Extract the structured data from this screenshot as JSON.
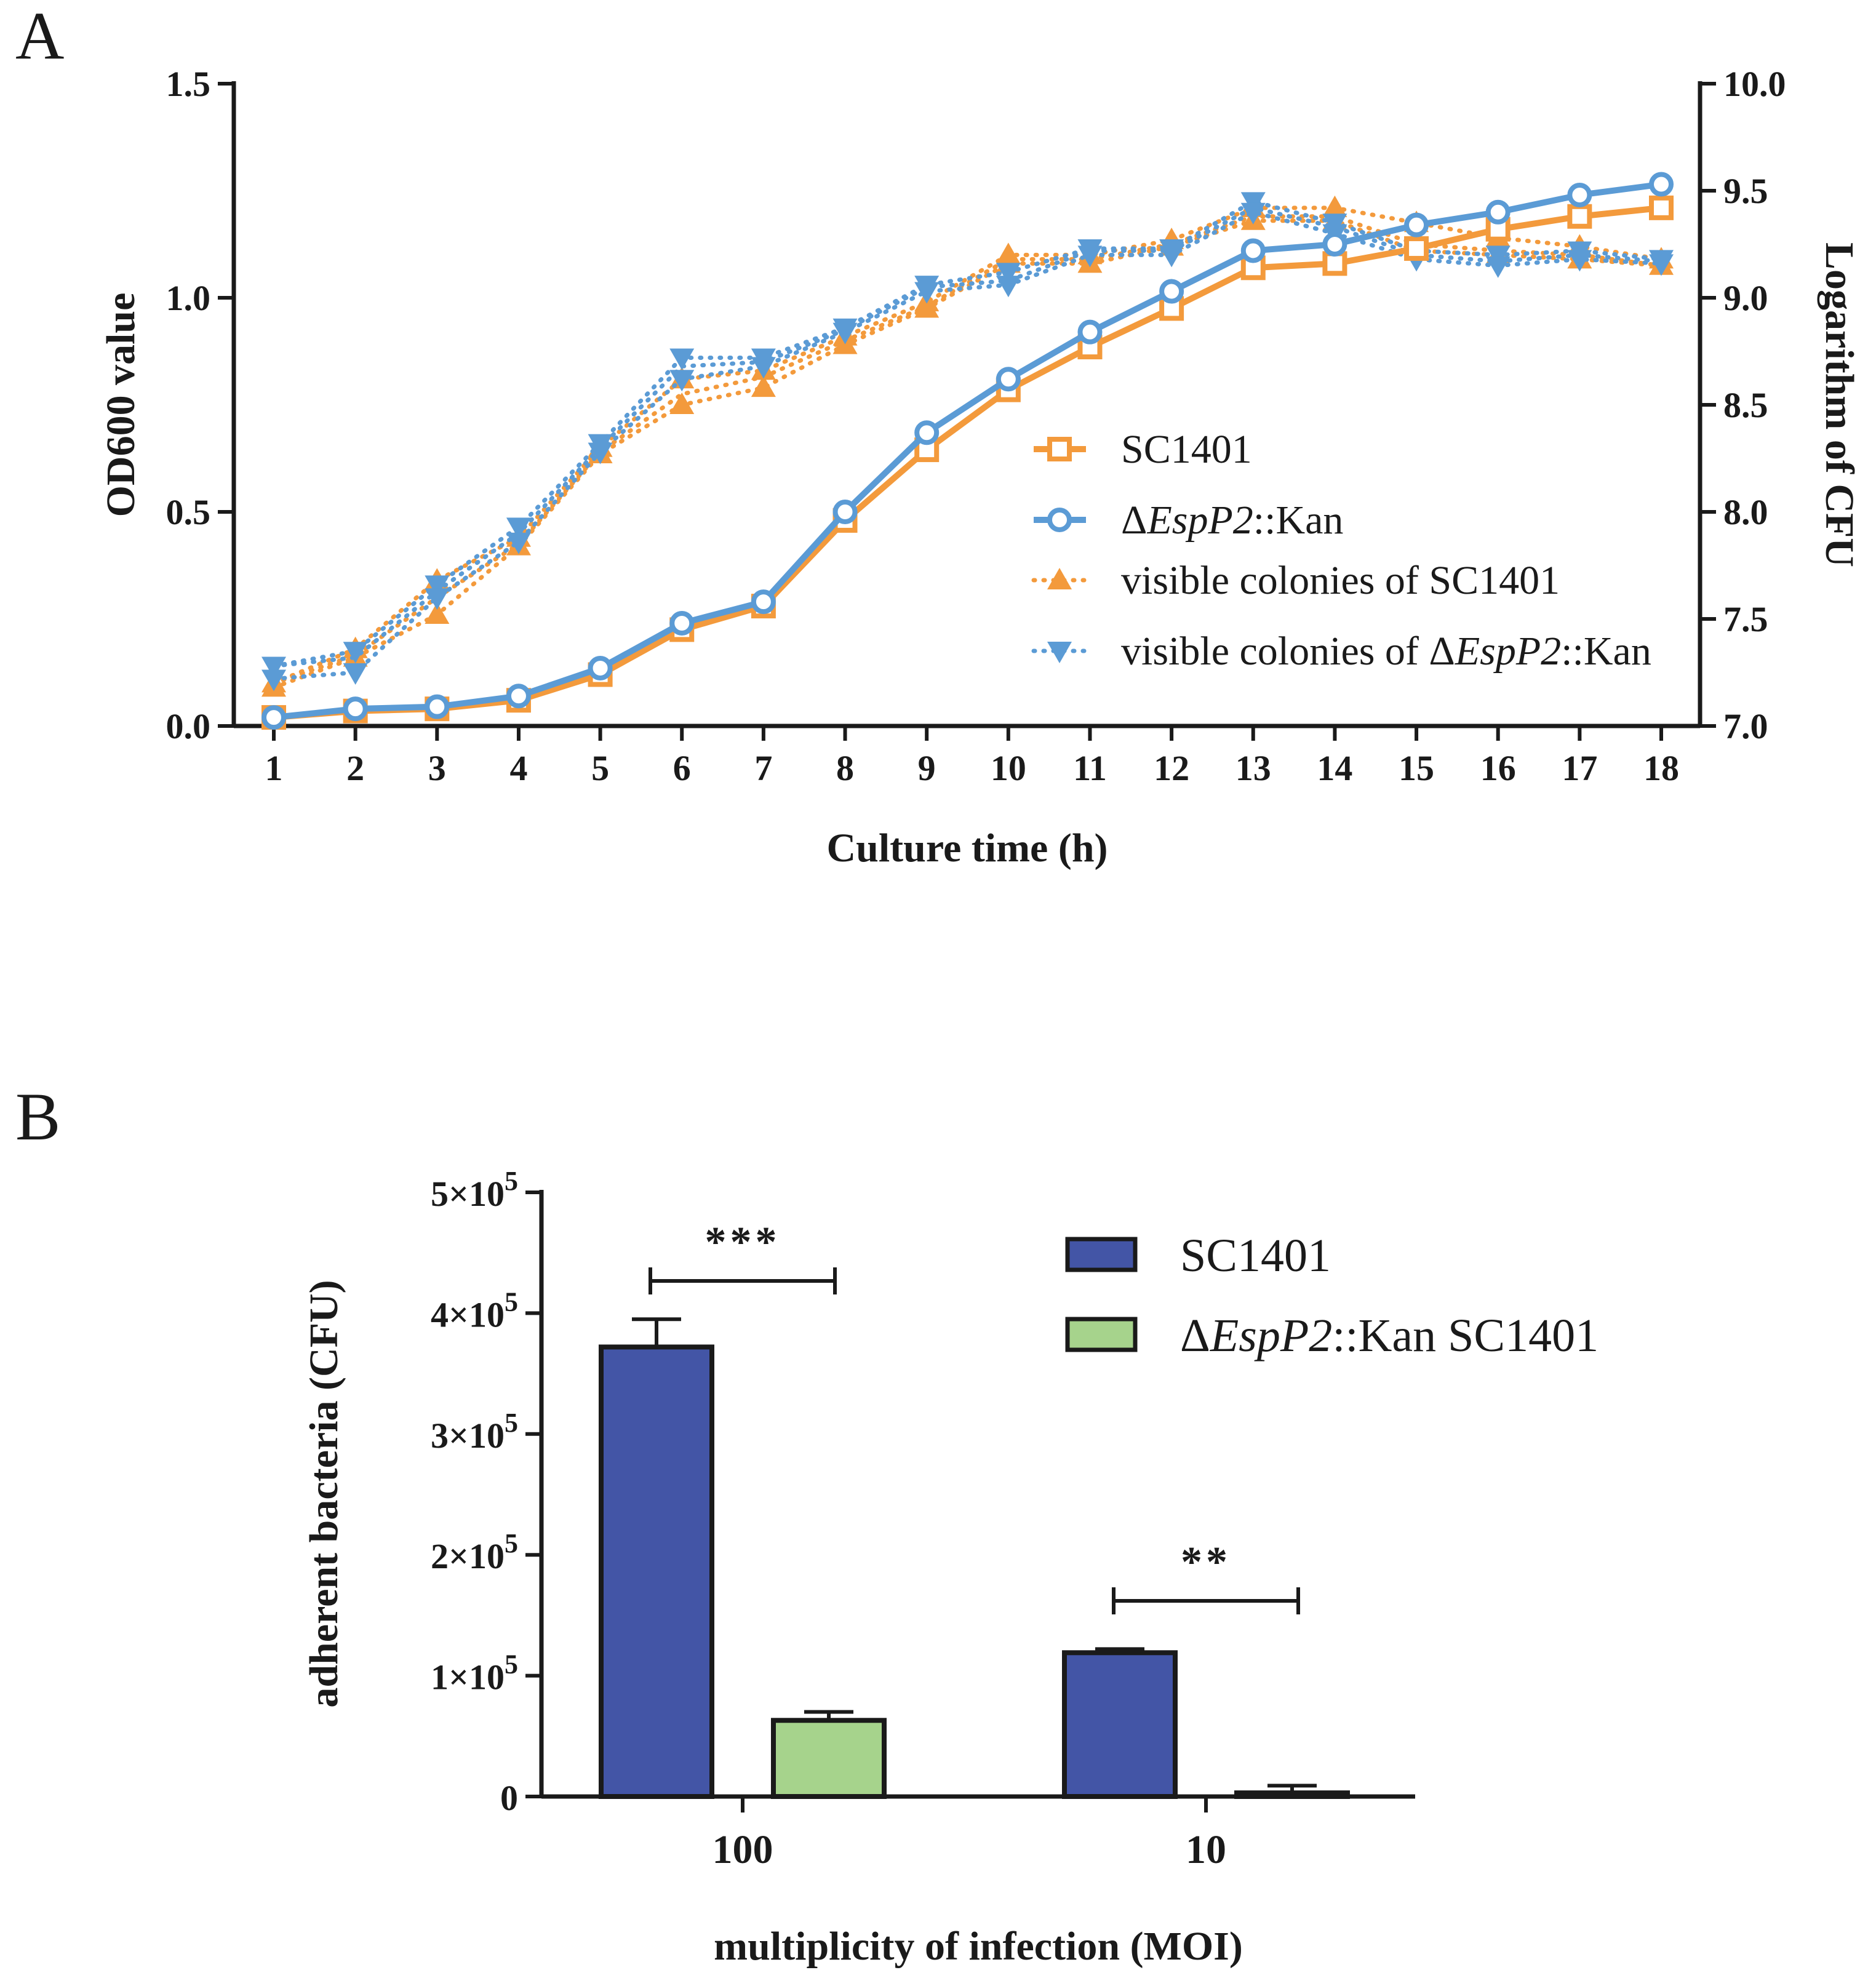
{
  "colors": {
    "orange": "#F39A3C",
    "blue": "#5B9BD5",
    "bar_blue": "#4355A6",
    "bar_green": "#A6D38C",
    "axis": "#1a1a1a"
  },
  "chart_data": [
    {
      "panel": "A",
      "type": "line",
      "title": "",
      "xlabel": "Culture time (h)",
      "ylabel": "OD600 value",
      "ylabel_right": "Logarithm of CFU",
      "x": [
        1,
        2,
        3,
        4,
        5,
        6,
        7,
        8,
        9,
        10,
        11,
        12,
        13,
        14,
        15,
        16,
        17,
        18
      ],
      "x_tick_labels": [
        "1",
        "2",
        "3",
        "4",
        "5",
        "6",
        "7",
        "8",
        "9",
        "10",
        "11",
        "12",
        "13",
        "14",
        "15",
        "16",
        "17",
        "18"
      ],
      "ylim": [
        0,
        1.5
      ],
      "y_ticks": [
        0.0,
        0.5,
        1.0,
        1.5
      ],
      "y_tick_labels": [
        "0.0",
        "0.5",
        "1.0",
        "1.5"
      ],
      "ylim_right": [
        7.0,
        10.0
      ],
      "y_ticks_right": [
        7.0,
        7.5,
        8.0,
        8.5,
        9.0,
        9.5,
        10.0
      ],
      "y_tick_labels_right": [
        "7.0",
        "7.5",
        "8.0",
        "8.5",
        "9.0",
        "9.5",
        "10.0"
      ],
      "legend_position": "center-right",
      "series": [
        {
          "name": "SC1401",
          "axis": "left",
          "style": "solid",
          "marker": "square-open",
          "color": "#F39A3C",
          "values": [
            0.02,
            0.035,
            0.04,
            0.06,
            0.12,
            0.225,
            0.28,
            0.48,
            0.645,
            0.785,
            0.885,
            0.975,
            1.07,
            1.08,
            1.115,
            1.16,
            1.19,
            1.21
          ]
        },
        {
          "name": "ΔEspP2::Kan",
          "name_prefix": "Δ",
          "name_italic": "EspP2",
          "name_suffix": "::Kan",
          "axis": "left",
          "style": "solid",
          "marker": "circle-open",
          "color": "#5B9BD5",
          "values": [
            0.02,
            0.04,
            0.045,
            0.07,
            0.135,
            0.24,
            0.29,
            0.5,
            0.685,
            0.81,
            0.92,
            1.015,
            1.11,
            1.125,
            1.17,
            1.2,
            1.24,
            1.265
          ]
        },
        {
          "name": "visible colonies of SC1401",
          "axis": "right",
          "style": "dotted",
          "marker": "triangle-up",
          "color": "#F39A3C",
          "values": [
            7.2,
            7.33,
            7.6,
            7.85,
            8.28,
            8.55,
            8.63,
            8.8,
            8.96,
            9.18,
            9.18,
            9.25,
            9.38,
            9.38,
            9.25,
            9.22,
            9.2,
            9.15
          ],
          "values_hi": [
            7.2,
            7.36,
            7.68,
            7.88,
            8.3,
            8.62,
            8.66,
            8.82,
            8.98,
            9.2,
            9.2,
            9.27,
            9.42,
            9.42,
            9.35,
            9.28,
            9.24,
            9.18
          ],
          "values_lo": [
            7.18,
            7.32,
            7.52,
            7.84,
            8.27,
            8.5,
            8.58,
            8.78,
            8.95,
            9.16,
            9.16,
            9.24,
            9.36,
            9.36,
            9.22,
            9.2,
            9.18,
            9.15
          ]
        },
        {
          "name": "visible colonies of ΔEspP2::Kan",
          "name_prefix": "visible colonies of Δ",
          "name_italic": "EspP2",
          "name_suffix": "::Kan",
          "axis": "right",
          "style": "dotted",
          "marker": "triangle-down",
          "color": "#5B9BD5",
          "values": [
            7.28,
            7.32,
            7.63,
            7.9,
            8.3,
            8.68,
            8.7,
            8.85,
            9.05,
            9.08,
            9.22,
            9.22,
            9.42,
            9.33,
            9.2,
            9.17,
            9.2,
            9.17
          ],
          "values_hi": [
            7.28,
            7.35,
            7.66,
            7.93,
            8.32,
            8.72,
            8.72,
            8.86,
            9.06,
            9.12,
            9.23,
            9.23,
            9.45,
            9.35,
            9.22,
            9.2,
            9.22,
            9.18
          ],
          "values_lo": [
            7.22,
            7.25,
            7.6,
            7.86,
            8.28,
            8.62,
            8.68,
            8.84,
            9.03,
            9.06,
            9.2,
            9.2,
            9.4,
            9.3,
            9.18,
            9.15,
            9.18,
            9.16
          ]
        }
      ]
    },
    {
      "panel": "B",
      "type": "bar",
      "title": "",
      "xlabel": "multiplicity of infection (MOI)",
      "ylabel": "adherent bacteria (CFU)",
      "categories": [
        "100",
        "10"
      ],
      "ylim": [
        0,
        500000
      ],
      "y_ticks": [
        0,
        100000,
        200000,
        300000,
        400000,
        500000
      ],
      "y_tick_labels": [
        {
          "base": "0",
          "exp": ""
        },
        {
          "base": "1×10",
          "exp": "5"
        },
        {
          "base": "2×10",
          "exp": "5"
        },
        {
          "base": "3×10",
          "exp": "5"
        },
        {
          "base": "4×10",
          "exp": "5"
        },
        {
          "base": "5×10",
          "exp": "5"
        }
      ],
      "legend_position": "top-right",
      "series": [
        {
          "name": "SC1401",
          "color": "#4355A6",
          "values": [
            372000,
            119000
          ],
          "errors": [
            23000,
            3000
          ]
        },
        {
          "name": "ΔEspP2::Kan SC1401",
          "name_prefix": "Δ",
          "name_italic": "EspP2",
          "name_suffix": "::Kan SC1401",
          "color": "#A6D38C",
          "values": [
            63000,
            3000
          ],
          "errors": [
            7000,
            6000
          ]
        }
      ],
      "significance": [
        {
          "category": "100",
          "label": "***"
        },
        {
          "category": "10",
          "label": "**"
        }
      ]
    }
  ]
}
